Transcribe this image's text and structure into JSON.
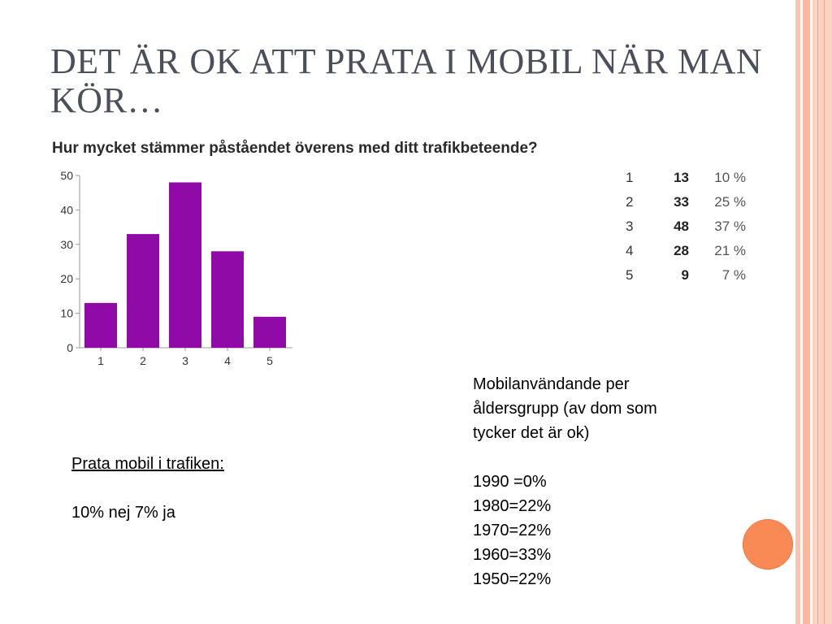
{
  "slide": {
    "title": "DET ÄR OK ATT PRATA I MOBIL NÄR MAN KÖR…"
  },
  "chart_data": {
    "type": "bar",
    "title": "Hur mycket stämmer påståendet överens med ditt trafikbeteende?",
    "categories": [
      "1",
      "2",
      "3",
      "4",
      "5"
    ],
    "values": [
      13,
      33,
      48,
      28,
      9
    ],
    "ylim": [
      0,
      50
    ],
    "yticks": [
      "0",
      "10",
      "20",
      "30",
      "40",
      "50"
    ],
    "bar_color": "#8f0aa6",
    "grid": false
  },
  "table": {
    "rows": [
      {
        "category": "1",
        "count": "13",
        "percent": "10 %"
      },
      {
        "category": "2",
        "count": "33",
        "percent": "25 %"
      },
      {
        "category": "3",
        "count": "48",
        "percent": "37 %"
      },
      {
        "category": "4",
        "count": "28",
        "percent": "21 %"
      },
      {
        "category": "5",
        "count": "9",
        "percent": "7 %"
      }
    ]
  },
  "left_text": {
    "heading": "Prata mobil i trafiken:",
    "body": "10% nej 7% ja"
  },
  "right_text": {
    "intro_line1": "Mobilanvändande per",
    "intro_line2": "åldersgrupp (av dom som",
    "intro_line3": "tycker det är ok)",
    "items": [
      "1990 =0%",
      "1980=22%",
      "1970=22%",
      "1960=33%",
      "1950=22%"
    ]
  },
  "colors": {
    "accent_circle": "#f98a55",
    "stripes": "#f9b9a0",
    "title": "#4a4f5a"
  }
}
